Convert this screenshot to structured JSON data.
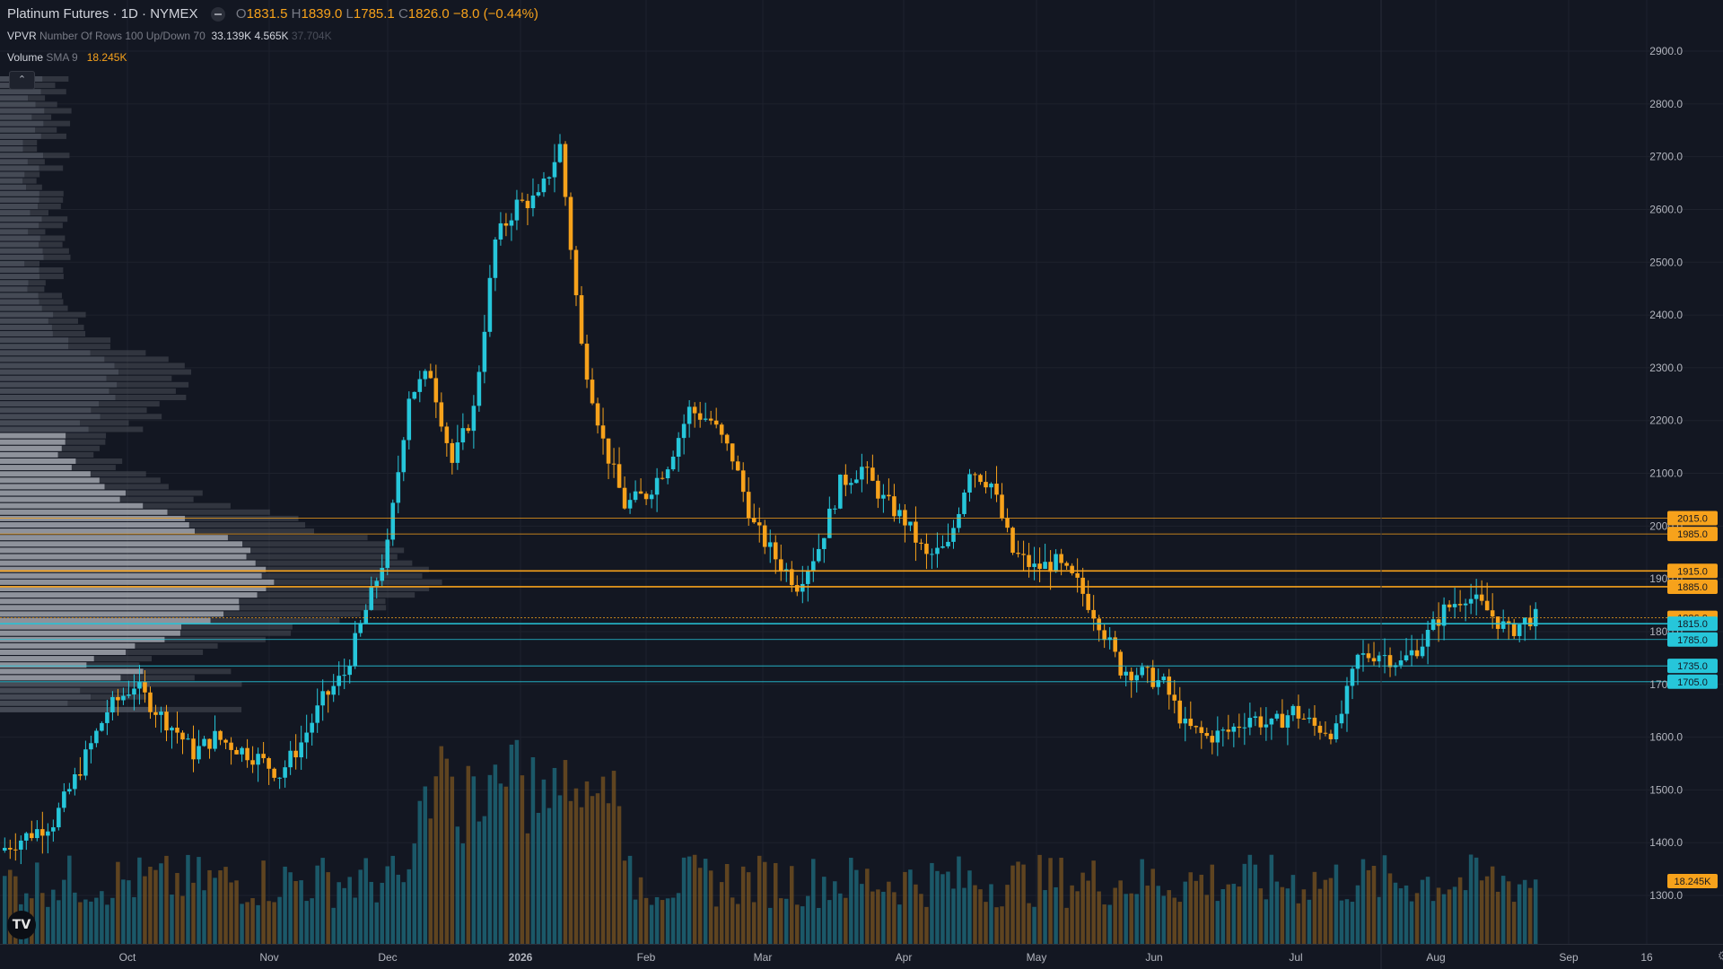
{
  "symbol": {
    "title": "Platinum Futures · 1D · NYMEX",
    "open_label": "O",
    "open": "1831.5",
    "high_label": "H",
    "high": "1839.0",
    "low_label": "L",
    "low": "1785.1",
    "close_label": "C",
    "close": "1826.0",
    "change": "−8.0 (−0.44%)"
  },
  "vpvr": {
    "name": "VPVR",
    "params": "Number Of Rows 100 Up/Down 70",
    "value1": "33.139K",
    "value2": "4.565K",
    "value3": "37.704K"
  },
  "volume_indicator": {
    "name": "Volume",
    "params": "SMA 9",
    "value": "18.245K"
  },
  "collapse_icon": "chevron-up-icon",
  "logo": "TV",
  "colors": {
    "background": "#131722",
    "up": "#26c6da",
    "down": "#f7a21b",
    "grid": "#1e222d",
    "text": "#b2b5be"
  },
  "chart_data": {
    "type": "candlestick",
    "title": "Platinum Futures · 1D · NYMEX",
    "ylim": [
      1250,
      2950
    ],
    "y_ticks": [
      "2900.0",
      "2800.0",
      "2700.0",
      "2600.0",
      "2500.0",
      "2400.0",
      "2300.0",
      "2200.0",
      "2100.0",
      "2000.0",
      "1900.0",
      "1800.0",
      "1700.0",
      "1600.0",
      "1500.0",
      "1400.0",
      "1300.0"
    ],
    "x_ticks": [
      "Oct",
      "Nov",
      "Dec",
      "2026",
      "Feb",
      "Mar",
      "Apr",
      "May",
      "Jun",
      "Jul",
      "Aug",
      "Sep",
      "16"
    ],
    "price_lines": [
      {
        "label": "2015.0",
        "color": "#f7a21b"
      },
      {
        "label": "1985.0",
        "color": "#f7a21b"
      },
      {
        "label": "1915.0",
        "color": "#f7a21b"
      },
      {
        "label": "1885.0",
        "color": "#f7a21b"
      },
      {
        "label": "1826.0",
        "color": "#f7a21b"
      },
      {
        "label": "1815.0",
        "color": "#26c6da"
      },
      {
        "label": "1785.0",
        "color": "#26c6da"
      },
      {
        "label": "1735.0",
        "color": "#26c6da"
      },
      {
        "label": "1705.0",
        "color": "#26c6da"
      }
    ],
    "volume_label": "18.245K",
    "price_path": [
      [
        0,
        1385
      ],
      [
        10,
        1440
      ],
      [
        14,
        1520
      ],
      [
        20,
        1650
      ],
      [
        25,
        1700
      ],
      [
        30,
        1640
      ],
      [
        33,
        1610
      ],
      [
        36,
        1570
      ],
      [
        40,
        1600
      ],
      [
        44,
        1580
      ],
      [
        48,
        1560
      ],
      [
        52,
        1530
      ],
      [
        56,
        1590
      ],
      [
        60,
        1670
      ],
      [
        64,
        1720
      ],
      [
        68,
        1840
      ],
      [
        72,
        1960
      ],
      [
        76,
        2250
      ],
      [
        80,
        2290
      ],
      [
        84,
        2120
      ],
      [
        88,
        2220
      ],
      [
        92,
        2540
      ],
      [
        96,
        2610
      ],
      [
        100,
        2620
      ],
      [
        104,
        2720
      ],
      [
        108,
        2340
      ],
      [
        112,
        2160
      ],
      [
        116,
        2040
      ],
      [
        120,
        2060
      ],
      [
        124,
        2120
      ],
      [
        128,
        2220
      ],
      [
        132,
        2200
      ],
      [
        136,
        2130
      ],
      [
        140,
        2000
      ],
      [
        144,
        1940
      ],
      [
        148,
        1890
      ],
      [
        152,
        1960
      ],
      [
        156,
        2080
      ],
      [
        160,
        2110
      ],
      [
        164,
        2050
      ],
      [
        168,
        2010
      ],
      [
        172,
        1940
      ],
      [
        176,
        1960
      ],
      [
        180,
        2110
      ],
      [
        184,
        2080
      ],
      [
        188,
        1950
      ],
      [
        192,
        1920
      ],
      [
        196,
        1930
      ],
      [
        200,
        1890
      ],
      [
        204,
        1820
      ],
      [
        208,
        1730
      ],
      [
        212,
        1720
      ],
      [
        216,
        1700
      ],
      [
        220,
        1620
      ],
      [
        224,
        1600
      ],
      [
        228,
        1610
      ],
      [
        232,
        1640
      ],
      [
        236,
        1620
      ],
      [
        240,
        1650
      ],
      [
        244,
        1620
      ],
      [
        248,
        1610
      ],
      [
        252,
        1750
      ],
      [
        256,
        1760
      ],
      [
        260,
        1740
      ],
      [
        264,
        1780
      ],
      [
        268,
        1840
      ],
      [
        272,
        1870
      ],
      [
        276,
        1840
      ],
      [
        280,
        1800
      ],
      [
        284,
        1826
      ]
    ]
  }
}
